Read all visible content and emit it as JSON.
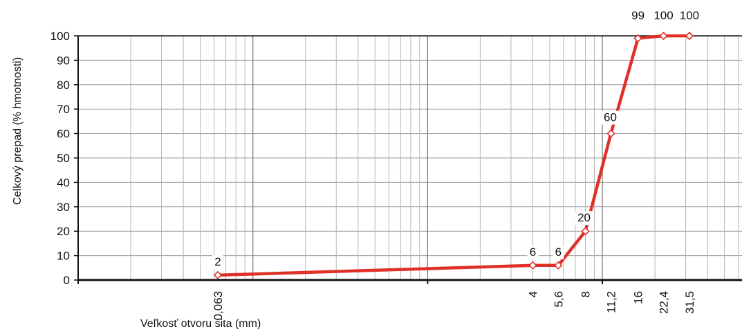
{
  "chart_data": {
    "type": "line",
    "title": "",
    "xlabel": "Veľkosť otvoru sita (mm)",
    "ylabel": "Celkový prepad  (% hmotnosti)",
    "x_scale": "log",
    "ylim": [
      0,
      100
    ],
    "y_ticks": [
      "0",
      "10",
      "20",
      "30",
      "40",
      "50",
      "60",
      "70",
      "80",
      "90",
      "100"
    ],
    "grid": true,
    "legend": "none",
    "series_color": "#e0302a",
    "series": [
      {
        "x": [
          0.063,
          4,
          5.6,
          8,
          11.2,
          16,
          22.4,
          31.5
        ],
        "x_labels": [
          "0,063",
          "4",
          "5,6",
          "8",
          "11,2",
          "16",
          "22,4",
          "31,5"
        ],
        "values": [
          2,
          6,
          6,
          20,
          60,
          99,
          100,
          100
        ],
        "value_labels": [
          "2",
          "6",
          "6",
          "20",
          "60",
          "99",
          "100",
          "100"
        ]
      }
    ]
  }
}
